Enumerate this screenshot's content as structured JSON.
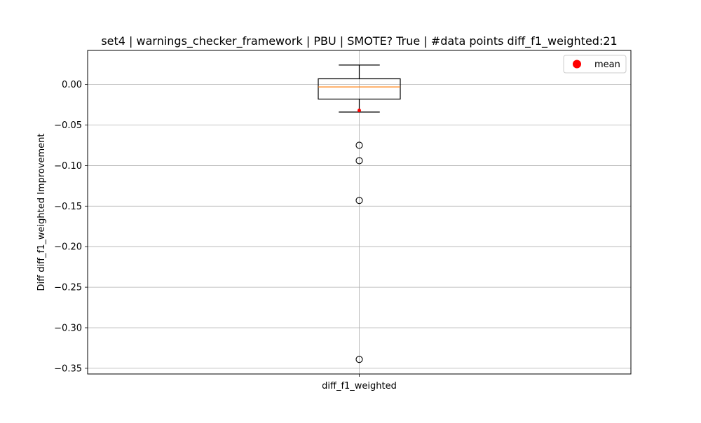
{
  "chart_data": {
    "type": "box",
    "title": "set4 | warnings_checker_framework | PBU | SMOTE? True | #data points diff_f1_weighted:21",
    "xlabel": "",
    "ylabel": "Diff diff_f1_weighted Improvement",
    "categories": [
      "diff_f1_weighted"
    ],
    "ylim": [
      -0.357,
      0.042
    ],
    "yticks": [
      0.0,
      -0.05,
      -0.1,
      -0.15,
      -0.2,
      -0.25,
      -0.3,
      -0.35
    ],
    "ytick_labels": [
      "0.00",
      "−0.05",
      "−0.10",
      "−0.15",
      "−0.20",
      "−0.25",
      "−0.30",
      "−0.35"
    ],
    "grid": true,
    "legend": {
      "placement": "top-right",
      "entries": [
        {
          "label": "mean",
          "color": "#ff0000"
        }
      ]
    },
    "box": {
      "whisker_low": -0.034,
      "q1": -0.018,
      "median": -0.003,
      "q3": 0.007,
      "whisker_high": 0.024,
      "outliers": [
        -0.075,
        -0.094,
        -0.143,
        -0.339
      ],
      "mean": -0.032
    },
    "colors": {
      "median": "#ff7f0e",
      "mean": "#ff0000",
      "grid": "#b0b0b0",
      "box": "#000000"
    }
  }
}
